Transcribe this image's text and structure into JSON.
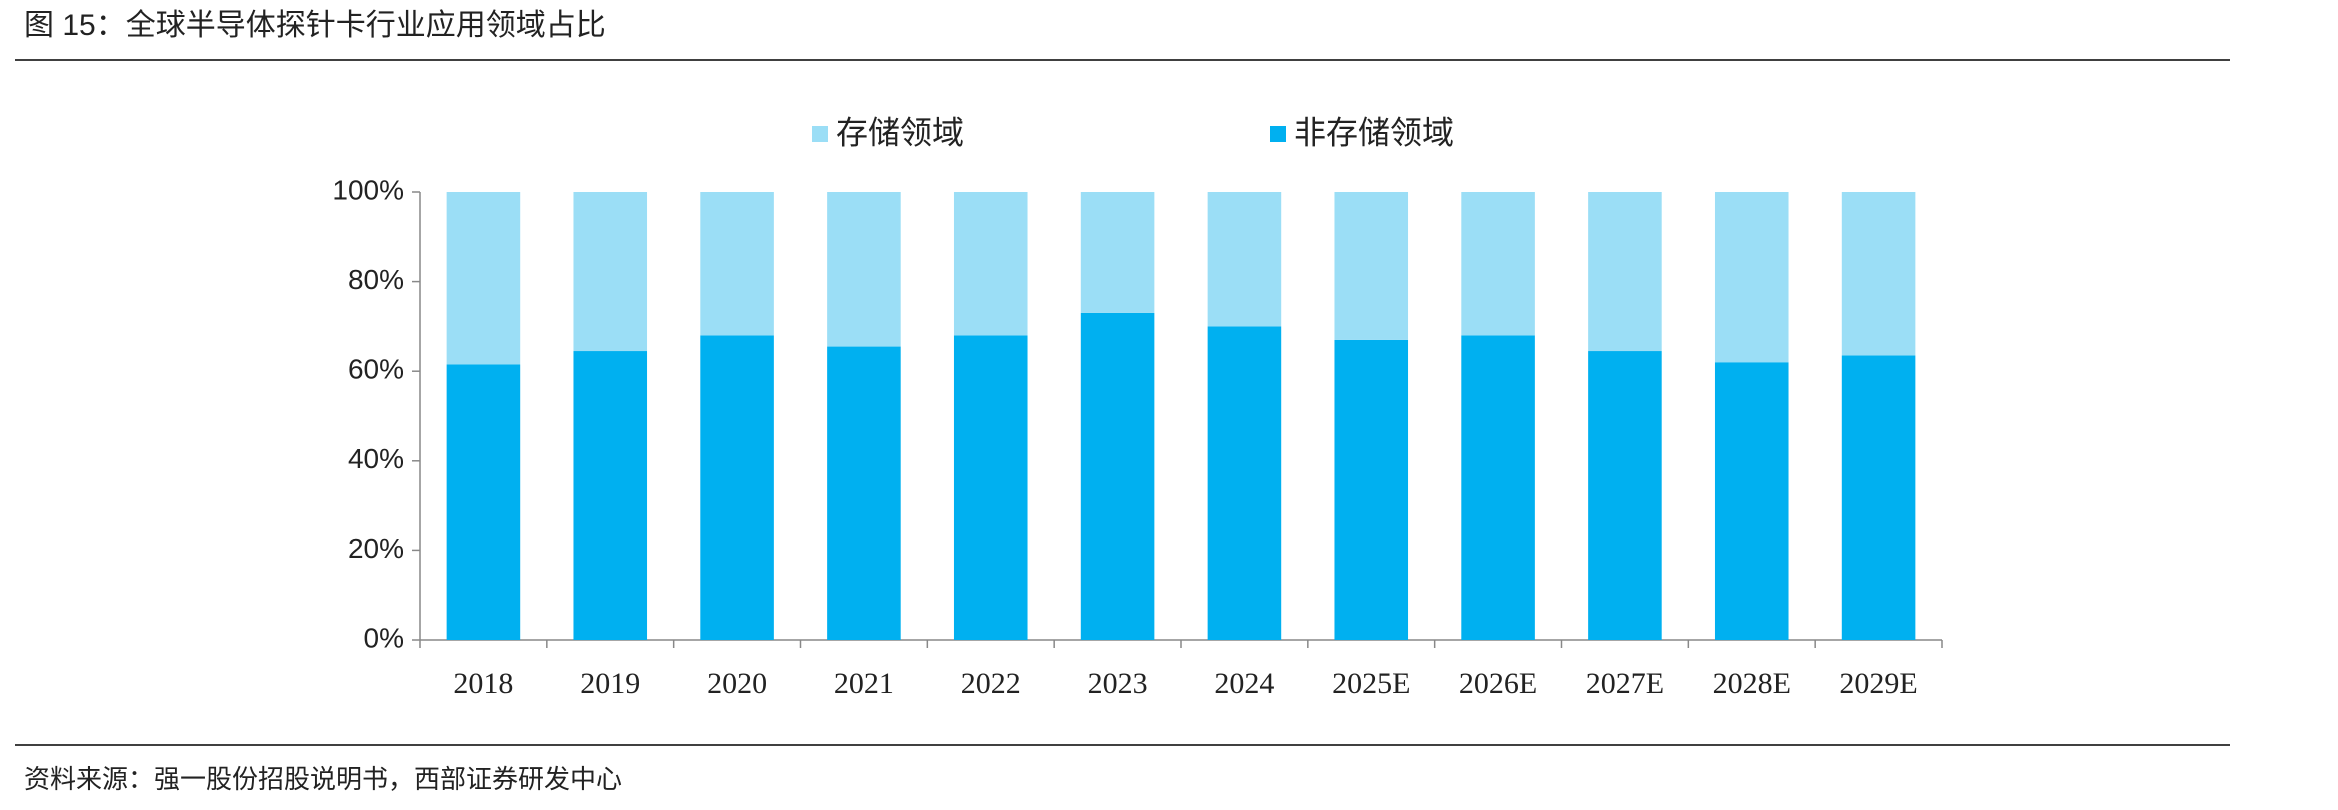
{
  "chart_data": {
    "type": "stacked-bar",
    "title": "图 15：全球半导体探针卡行业应用领域占比",
    "source": "资料来源：强一股份招股说明书，西部证券研发中心",
    "categories": [
      "2018",
      "2019",
      "2020",
      "2021",
      "2022",
      "2023",
      "2024",
      "2025E",
      "2026E",
      "2027E",
      "2028E",
      "2029E"
    ],
    "series": [
      {
        "name": "存储领域",
        "color": "#9bdef6",
        "values": [
          38.5,
          35.5,
          32,
          34.5,
          32,
          27,
          30,
          33,
          32,
          35.5,
          38,
          36.5
        ]
      },
      {
        "name": "非存储领域",
        "color": "#00b0f0",
        "values": [
          61.5,
          64.5,
          68,
          65.5,
          68,
          73,
          70,
          67,
          68,
          64.5,
          62,
          63.5
        ]
      }
    ],
    "ylim": [
      0,
      100
    ],
    "yticks": [
      {
        "value": 0,
        "label": "0%"
      },
      {
        "value": 20,
        "label": "20%"
      },
      {
        "value": 40,
        "label": "40%"
      },
      {
        "value": 60,
        "label": "60%"
      },
      {
        "value": 80,
        "label": "80%"
      },
      {
        "value": 100,
        "label": "100%"
      }
    ],
    "legend": "top"
  }
}
